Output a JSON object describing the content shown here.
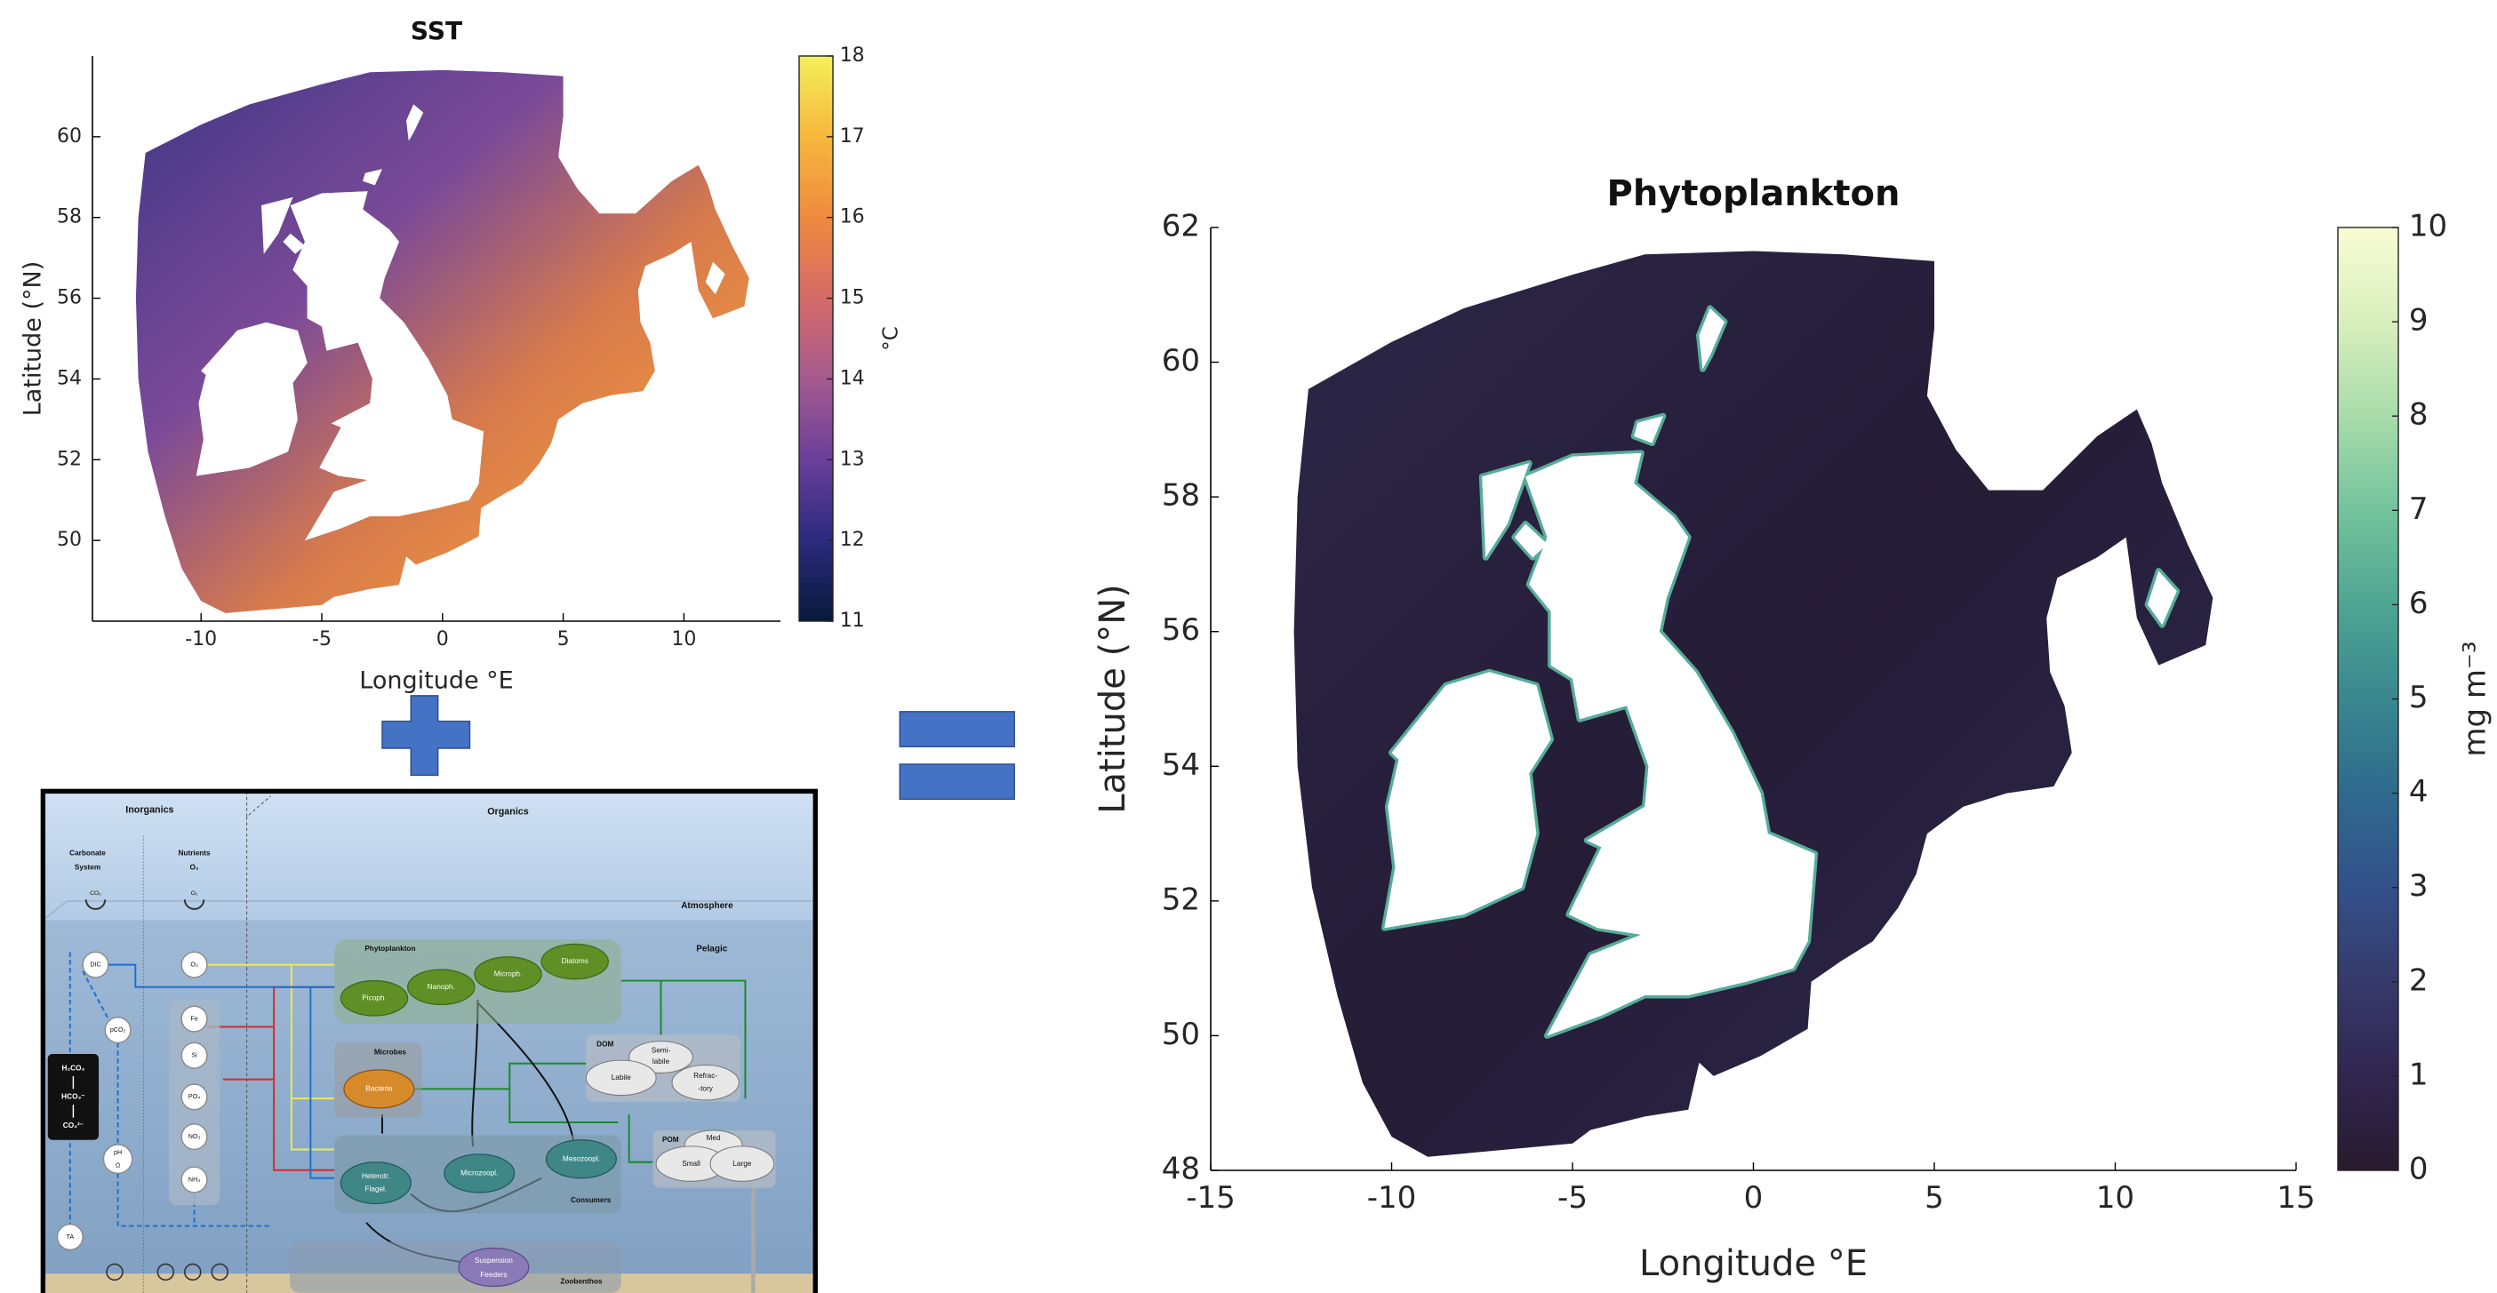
{
  "chart_data": [
    {
      "type": "heatmap",
      "title": "SST",
      "xlabel": "Longitude °E",
      "ylabel": "Latitude (°N)",
      "xlim": [
        -14.5,
        14
      ],
      "xticks": [
        -10,
        -5,
        0,
        5,
        10
      ],
      "ylim": [
        48,
        62
      ],
      "yticks": [
        50,
        52,
        54,
        56,
        58,
        60
      ],
      "colorbar": {
        "label": "°C",
        "clim": [
          11,
          18
        ],
        "ticks": [
          11,
          12,
          13,
          14,
          15,
          16,
          17,
          18
        ],
        "colors": [
          "#061a3a",
          "#2c2a7e",
          "#6a3f9a",
          "#a45a8f",
          "#d56a68",
          "#ef8a3e",
          "#f7b73c",
          "#f3f05a"
        ]
      }
    },
    {
      "type": "heatmap",
      "title": "Phytoplankton",
      "xlabel": "Longitude °E",
      "ylabel": "Latitude (°N)",
      "xlim": [
        -15,
        15
      ],
      "xticks": [
        -15,
        -10,
        -5,
        0,
        5,
        10,
        15
      ],
      "ylim": [
        48,
        62
      ],
      "yticks": [
        48,
        50,
        52,
        54,
        56,
        58,
        60,
        62
      ],
      "colorbar": {
        "label": "mg m⁻³",
        "clim": [
          0,
          10
        ],
        "ticks": [
          0,
          1,
          2,
          3,
          4,
          5,
          6,
          7,
          8,
          9,
          10
        ],
        "colors": [
          "#281a2e",
          "#30264f",
          "#363a6b",
          "#32518a",
          "#2f6a8e",
          "#39878f",
          "#4fa592",
          "#74c39d",
          "#a8dcaa",
          "#d8efbd",
          "#f8fcd4"
        ]
      }
    }
  ],
  "diagram": {
    "labels": [
      "Inorganics",
      "Organics",
      "Carbonate",
      "System",
      "Nutrients",
      "O₂",
      "CO₂",
      "O₂",
      "Atmosphere",
      "Pelagic",
      "DIC",
      "O₂",
      "pCO₂",
      "Fe",
      "Si",
      "PO₄",
      "NO₃",
      "NH₄",
      "pH",
      "Ω",
      "TA",
      "H₂CO₃",
      "HCO₃⁻",
      "CO₃²⁻",
      "Phytoplankton",
      "Picoph.",
      "Nanoph.",
      "Microph.",
      "Diatoms",
      "Microbes",
      "Bacteria",
      "DOM",
      "Semi-",
      "labile",
      "Labile",
      "Refrac-",
      "-tory",
      "POM",
      "Med",
      "Small",
      "Large",
      "Heterotr.",
      "Flagel.",
      "Microzoopl.",
      "Mesozoopl.",
      "Consumers",
      "Suspension",
      "Feeders",
      "Zoobenthos"
    ]
  }
}
